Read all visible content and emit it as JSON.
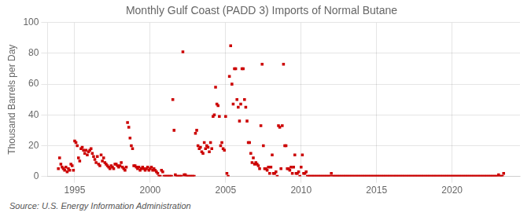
{
  "chart_data": {
    "type": "scatter",
    "title": "Monthly Gulf Coast (PADD 3) Imports of Normal Butane",
    "y_label": "Thousand Barrels per Day",
    "annotation": "Source: U.S. Energy Information Administration",
    "color": "#cc0000",
    "marker": "square",
    "grid": true,
    "xlim": [
      1993.2,
      2024.5
    ],
    "ylim": [
      0,
      100
    ],
    "xticks": [
      1995,
      2000,
      2005,
      2010,
      2015,
      2020
    ],
    "yticks": [
      0,
      20,
      40,
      60,
      80,
      100
    ],
    "x": [
      1993.917,
      1994.0,
      1994.083,
      1994.167,
      1994.25,
      1994.333,
      1994.417,
      1994.5,
      1994.583,
      1994.667,
      1994.75,
      1994.833,
      1994.917,
      1995.0,
      1995.083,
      1995.167,
      1995.25,
      1995.333,
      1995.417,
      1995.5,
      1995.583,
      1995.667,
      1995.75,
      1995.833,
      1995.917,
      1996.0,
      1996.083,
      1996.167,
      1996.25,
      1996.333,
      1996.417,
      1996.5,
      1996.583,
      1996.667,
      1996.75,
      1996.833,
      1996.917,
      1997.0,
      1997.083,
      1997.167,
      1997.25,
      1997.333,
      1997.417,
      1997.5,
      1997.583,
      1997.667,
      1997.75,
      1997.833,
      1997.917,
      1998.0,
      1998.083,
      1998.167,
      1998.25,
      1998.333,
      1998.417,
      1998.5,
      1998.583,
      1998.667,
      1998.75,
      1998.833,
      1998.917,
      1999.0,
      1999.083,
      1999.167,
      1999.25,
      1999.333,
      1999.417,
      1999.5,
      1999.583,
      1999.667,
      1999.75,
      1999.833,
      1999.917,
      2000.0,
      2000.083,
      2000.167,
      2000.25,
      2000.333,
      2000.417,
      2000.5,
      2000.583,
      2000.667,
      2000.75,
      2000.833,
      2000.917,
      2001.0,
      2001.083,
      2001.167,
      2001.25,
      2001.333,
      2001.417,
      2001.5,
      2001.583,
      2001.667,
      2001.75,
      2001.833,
      2001.917,
      2002.0,
      2002.083,
      2002.167,
      2002.25,
      2002.333,
      2002.417,
      2002.5,
      2002.583,
      2002.667,
      2002.75,
      2002.833,
      2002.917,
      2003.0,
      2003.083,
      2003.167,
      2003.25,
      2003.333,
      2003.417,
      2003.5,
      2003.583,
      2003.667,
      2003.75,
      2003.833,
      2003.917,
      2004.0,
      2004.083,
      2004.167,
      2004.25,
      2004.333,
      2004.417,
      2004.5,
      2004.583,
      2004.667,
      2004.75,
      2004.833,
      2004.917,
      2005.0,
      2005.083,
      2005.167,
      2005.25,
      2005.333,
      2005.417,
      2005.5,
      2005.583,
      2005.667,
      2005.75,
      2005.833,
      2005.917,
      2006.0,
      2006.083,
      2006.167,
      2006.25,
      2006.333,
      2006.417,
      2006.5,
      2006.583,
      2006.667,
      2006.75,
      2006.833,
      2006.917,
      2007.0,
      2007.083,
      2007.167,
      2007.25,
      2007.333,
      2007.417,
      2007.5,
      2007.583,
      2007.667,
      2007.75,
      2007.833,
      2007.917,
      2008.0,
      2008.083,
      2008.167,
      2008.25,
      2008.333,
      2008.417,
      2008.5,
      2008.583,
      2008.667,
      2008.75,
      2008.833,
      2008.917,
      2009.0,
      2009.083,
      2009.167,
      2009.25,
      2009.333,
      2009.417,
      2009.5,
      2009.583,
      2009.667,
      2009.75,
      2009.833,
      2009.917,
      2010.0,
      2010.083,
      2010.167,
      2010.25,
      2010.333,
      2010.417,
      2010.5,
      2010.583,
      2010.667,
      2010.75,
      2010.833,
      2010.917,
      2011.0,
      2011.083,
      2011.167,
      2011.25,
      2011.333,
      2011.417,
      2011.5,
      2011.583,
      2011.667,
      2011.75,
      2011.833,
      2011.917,
      2012.0,
      2012.083,
      2012.167,
      2012.25,
      2012.333,
      2012.417,
      2012.5,
      2012.583,
      2012.667,
      2012.75,
      2012.833,
      2012.917,
      2013.0,
      2013.083,
      2013.167,
      2013.25,
      2013.333,
      2013.417,
      2013.5,
      2013.583,
      2013.667,
      2013.75,
      2013.833,
      2013.917,
      2014.0,
      2014.083,
      2014.167,
      2014.25,
      2014.333,
      2014.417,
      2014.5,
      2014.583,
      2014.667,
      2014.75,
      2014.833,
      2014.917,
      2015.0,
      2015.083,
      2015.167,
      2015.25,
      2015.333,
      2015.417,
      2015.5,
      2015.583,
      2015.667,
      2015.75,
      2015.833,
      2015.917,
      2016.0,
      2016.083,
      2016.167,
      2016.25,
      2016.333,
      2016.417,
      2016.5,
      2016.583,
      2016.667,
      2016.75,
      2016.833,
      2016.917,
      2017.0,
      2017.083,
      2017.167,
      2017.25,
      2017.333,
      2017.417,
      2017.5,
      2017.583,
      2017.667,
      2017.75,
      2017.833,
      2017.917,
      2018.0,
      2018.083,
      2018.167,
      2018.25,
      2018.333,
      2018.417,
      2018.5,
      2018.583,
      2018.667,
      2018.75,
      2018.833,
      2018.917,
      2019.0,
      2019.083,
      2019.167,
      2019.25,
      2019.333,
      2019.417,
      2019.5,
      2019.583,
      2019.667,
      2019.75,
      2019.833,
      2019.917,
      2020.0,
      2020.083,
      2020.167,
      2020.25,
      2020.333,
      2020.417,
      2020.5,
      2020.583,
      2020.667,
      2020.75,
      2020.833,
      2020.917,
      2021.0,
      2021.083,
      2021.167,
      2021.25,
      2021.333,
      2021.417,
      2021.5,
      2021.583,
      2021.667,
      2021.75,
      2021.833,
      2021.917,
      2022.0,
      2022.083,
      2022.167,
      2022.25,
      2022.333,
      2022.417,
      2022.5,
      2022.583,
      2022.667,
      2022.75,
      2022.833,
      2022.917,
      2023.0,
      2023.083,
      2023.167,
      2023.25,
      2023.333,
      2023.417
    ],
    "values": [
      5,
      12,
      8,
      6,
      5,
      4,
      6,
      3,
      5,
      4,
      8,
      7,
      4,
      23,
      22,
      20,
      12,
      10,
      18,
      19,
      17,
      15,
      17,
      14,
      16,
      17,
      18,
      15,
      13,
      11,
      9,
      13,
      8,
      7,
      14,
      10,
      12,
      9,
      8,
      7,
      6,
      5,
      7,
      6,
      5,
      8,
      8,
      7,
      6,
      7,
      9,
      6,
      5,
      4,
      6,
      35,
      32,
      25,
      20,
      18,
      7,
      7,
      6,
      5,
      6,
      4,
      5,
      6,
      5,
      4,
      5,
      6,
      4,
      5,
      6,
      4,
      5,
      4,
      3,
      2,
      0,
      0,
      4,
      3,
      0,
      0,
      0,
      0,
      0,
      0,
      0,
      50,
      30,
      1,
      0,
      0,
      0,
      0,
      0,
      81,
      1,
      1,
      0,
      0,
      0,
      0,
      0,
      0,
      0,
      28,
      30,
      20,
      18,
      19,
      16,
      15,
      22,
      18,
      20,
      19,
      16,
      22,
      18,
      39,
      40,
      58,
      47,
      46,
      39,
      20,
      22,
      18,
      17,
      39,
      2,
      0,
      65,
      85,
      60,
      47,
      70,
      70,
      50,
      45,
      36,
      47,
      70,
      70,
      50,
      45,
      36,
      22,
      22,
      15,
      9,
      12,
      8,
      9,
      8,
      7,
      5,
      33,
      73,
      20,
      5,
      5,
      4,
      6,
      2,
      6,
      14,
      2,
      2,
      3,
      0,
      33,
      32,
      5,
      33,
      73,
      20,
      20,
      5,
      5,
      4,
      6,
      2,
      6,
      14,
      2,
      2,
      3,
      0,
      6,
      14,
      2,
      2,
      3,
      0,
      0,
      0,
      0,
      0,
      0,
      0,
      0,
      0,
      0,
      0,
      0,
      0,
      0,
      0,
      0,
      0,
      0,
      0,
      2,
      0,
      0,
      0,
      0,
      0,
      0,
      0,
      0,
      0,
      0,
      0,
      0,
      0,
      0,
      0,
      0,
      0,
      0,
      0,
      0,
      0,
      0,
      0,
      0,
      0,
      0,
      0,
      0,
      0,
      0,
      0,
      0,
      0,
      0,
      0,
      0,
      0,
      0,
      0,
      0,
      0,
      0,
      0,
      0,
      0,
      0,
      0,
      0,
      0,
      0,
      0,
      0,
      0,
      0,
      0,
      0,
      0,
      0,
      0,
      0,
      0,
      0,
      0,
      0,
      0,
      0,
      0,
      0,
      0,
      0,
      0,
      0,
      0,
      0,
      0,
      0,
      0,
      0,
      0,
      0,
      0,
      0,
      0,
      0,
      0,
      0,
      0,
      0,
      0,
      0,
      0,
      0,
      0,
      0,
      0,
      0,
      0,
      0,
      0,
      0,
      0,
      0,
      0,
      0,
      0,
      0,
      0,
      0,
      0,
      0,
      0,
      0,
      0,
      0,
      0,
      0,
      0,
      0,
      0,
      0,
      0,
      0,
      0,
      0,
      0,
      0,
      0,
      0,
      0,
      0,
      0,
      0,
      1,
      0,
      0,
      0,
      2
    ]
  }
}
